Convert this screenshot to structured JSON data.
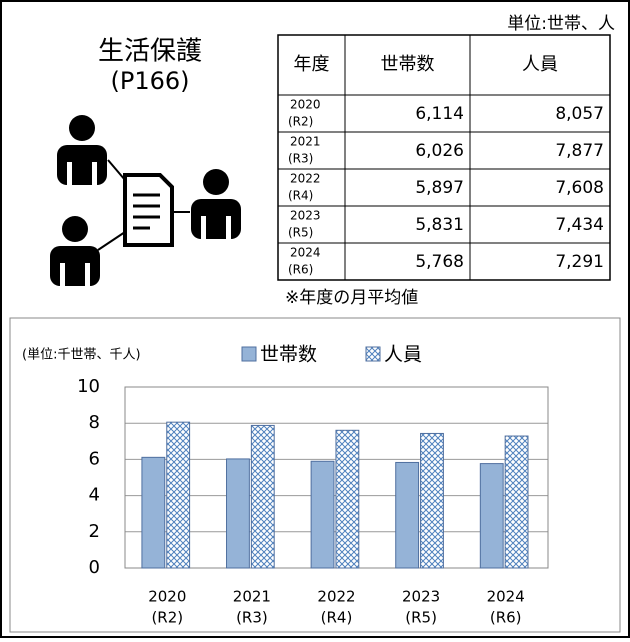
{
  "header": {
    "title": "生活保護",
    "page_ref": "(P166)",
    "unit": "単位:世帯、人"
  },
  "table": {
    "columns": [
      "年度",
      "世帯数",
      "人員"
    ],
    "rows": [
      [
        "2020",
        "(R2)",
        "6,114",
        "8,057"
      ],
      [
        "2021",
        "(R3)",
        "6,026",
        "7,877"
      ],
      [
        "2022",
        "(R4)",
        "5,897",
        "7,608"
      ],
      [
        "2023",
        "(R5)",
        "5,831",
        "7,434"
      ],
      [
        "2024",
        "(R6)",
        "5,768",
        "7,291"
      ]
    ],
    "note": "※年度の月平均値"
  },
  "chart_data": {
    "type": "bar",
    "unit_label": "(単位:千世帯、千人)",
    "categories": [
      "2020",
      "2021",
      "2022",
      "2023",
      "2024"
    ],
    "category_sublabels": [
      "(R2)",
      "(R3)",
      "(R4)",
      "(R5)",
      "(R6)"
    ],
    "series": [
      {
        "name": "世帯数",
        "color": "#95b3d7",
        "pattern": "solid",
        "values": [
          6.114,
          6.026,
          5.897,
          5.831,
          5.768
        ]
      },
      {
        "name": "人員",
        "color": "#4f81bd",
        "pattern": "crosshatch",
        "values": [
          8.057,
          7.877,
          7.608,
          7.434,
          7.291
        ]
      }
    ],
    "ylim": [
      0,
      10
    ],
    "yticks": [
      0,
      2,
      4,
      6,
      8,
      10
    ],
    "grid": true
  }
}
